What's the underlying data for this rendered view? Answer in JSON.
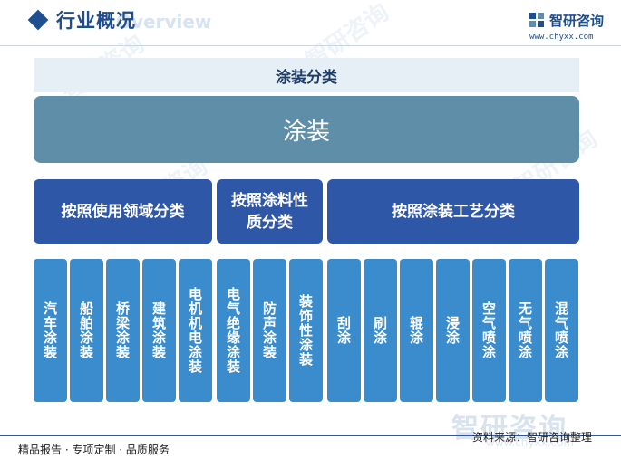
{
  "header": {
    "title": "行业概况",
    "title_en": "Overview",
    "brand_name": "智研咨询",
    "brand_url": "www.chyxx.com"
  },
  "diagram": {
    "category_label": "涂装分类",
    "root": "涂装",
    "groups": [
      "按照使用领域分类",
      "按照涂料性质分类",
      "按照涂装工艺分类"
    ],
    "leaves": [
      "汽车涂装",
      "船舶涂装",
      "桥梁涂装",
      "建筑涂装",
      "电机机电涂装",
      "电气绝缘涂装",
      "防声涂装",
      "装饰性涂装",
      "刮涂",
      "刷涂",
      "辊涂",
      "浸涂",
      "空气喷涂",
      "无气喷涂",
      "混气喷涂"
    ]
  },
  "footer": {
    "left_text": "精品报告 · 专项定制 · 品质服务",
    "source_text": "资料来源：智研咨询整理",
    "watermark_name": "智研咨询",
    "watermark_url": "www.chyxx.com"
  },
  "colors": {
    "primary": "#2f57a8",
    "root": "#5f8fa8",
    "leaf": "#3b8ccc",
    "band": "#e6eef6"
  }
}
